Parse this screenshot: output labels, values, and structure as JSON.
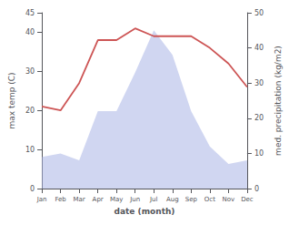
{
  "chart_data": {
    "type": "line",
    "xlabel": "date (month)",
    "ylabel": "max temp (C)",
    "y2label": "med. precipitation (kg/m2)",
    "categories": [
      "Jan",
      "Feb",
      "Mar",
      "Apr",
      "May",
      "Jun",
      "Jul",
      "Aug",
      "Sep",
      "Oct",
      "Nov",
      "Dec"
    ],
    "series": [
      {
        "type": "line",
        "color": "#cd5555",
        "values": [
          21,
          20,
          27,
          38,
          38,
          41,
          39,
          39,
          39,
          36,
          32,
          26
        ]
      },
      {
        "type": "area",
        "color": "#aab4e6",
        "axis": "y2",
        "values": [
          9,
          10,
          8,
          22,
          22,
          33,
          45,
          38,
          22,
          12,
          7,
          8
        ]
      }
    ],
    "ylim": [
      0,
      45
    ],
    "yticks": [
      0,
      10,
      20,
      30,
      40
    ],
    "y2lim": [
      0,
      50
    ],
    "y2ticks": [
      0,
      10,
      20,
      30,
      40,
      50
    ],
    "grid": false
  }
}
